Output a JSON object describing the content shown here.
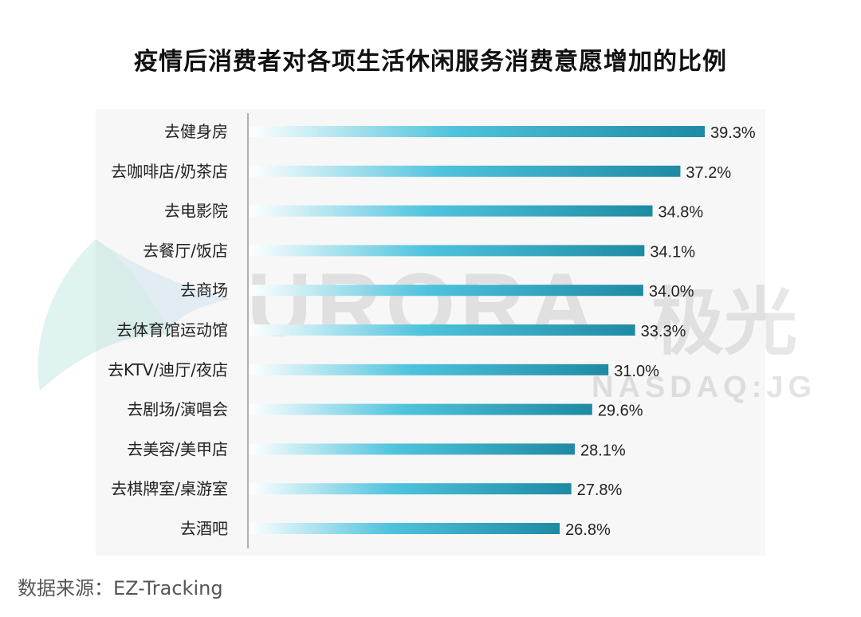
{
  "chart_data": {
    "type": "bar",
    "orientation": "horizontal",
    "title": "疫情后消费者对各项生活休闲服务消费意愿增加的比例",
    "categories": [
      "去健身房",
      "去咖啡店/奶茶店",
      "去电影院",
      "去餐厅/饭店",
      "去商场",
      "去体育馆运动馆",
      "去KTV/迪厅/夜店",
      "去剧场/演唱会",
      "去美容/美甲店",
      "去棋牌室/桌游室",
      "去酒吧"
    ],
    "values": [
      39.3,
      37.2,
      34.8,
      34.1,
      34.0,
      33.3,
      31.0,
      29.6,
      28.1,
      27.8,
      26.8
    ],
    "value_labels": [
      "39.3%",
      "37.2%",
      "34.8%",
      "34.1%",
      "34.0%",
      "33.3%",
      "31.0%",
      "29.6%",
      "28.1%",
      "27.8%",
      "26.8%"
    ],
    "xlim": [
      0,
      39.3
    ],
    "grid": false,
    "legend": "none",
    "colors": {
      "bar_start": "#ffffff",
      "bar_mid": "#4fc3dd",
      "bar_end": "#1e8aa3",
      "axis": "#999999",
      "plot_background": "#f7f7f7"
    }
  },
  "watermark": {
    "text": "URORA",
    "text_cn": "极光",
    "subtext": "NASDAQ:JG"
  },
  "footer": {
    "source": "数据来源：EZ-Tracking"
  }
}
